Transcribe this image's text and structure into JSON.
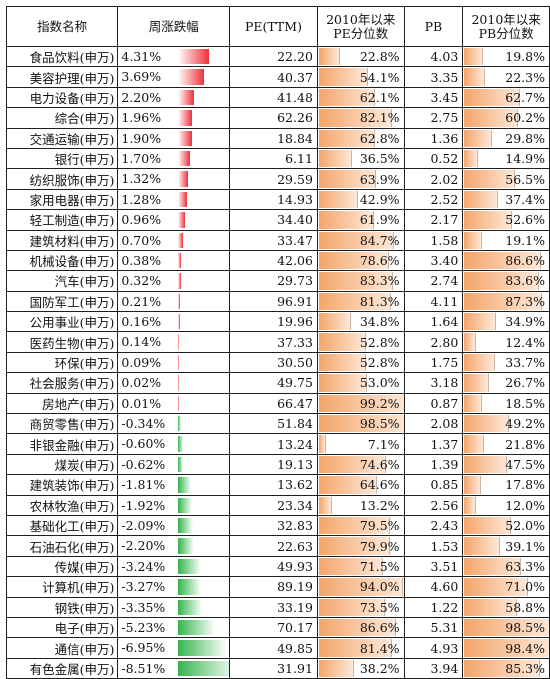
{
  "headers": {
    "name": "指数名称",
    "chg": "周涨跌幅",
    "pe": "PE(TTM)",
    "pe_pct_1": "2010年以来",
    "pe_pct_2": "PE分位数",
    "pb": "PB",
    "pb_pct_1": "2010年以来",
    "pb_pct_2": "PB分位数"
  },
  "colors": {
    "up_bar": "#f0303a",
    "down_bar": "#35b44c",
    "pct_bar": "#f4a56a"
  },
  "rows": [
    {
      "name": "食品饮料(申万)",
      "chg": "4.31%",
      "chg_v": 4.31,
      "pe": "22.20",
      "pe_pct": "22.8%",
      "pe_pct_v": 22.8,
      "pb": "4.03",
      "pb_pct": "19.8%",
      "pb_pct_v": 19.8
    },
    {
      "name": "美容护理(申万)",
      "chg": "3.69%",
      "chg_v": 3.69,
      "pe": "40.37",
      "pe_pct": "54.1%",
      "pe_pct_v": 54.1,
      "pb": "3.35",
      "pb_pct": "22.3%",
      "pb_pct_v": 22.3
    },
    {
      "name": "电力设备(申万)",
      "chg": "2.20%",
      "chg_v": 2.2,
      "pe": "41.48",
      "pe_pct": "62.1%",
      "pe_pct_v": 62.1,
      "pb": "3.45",
      "pb_pct": "62.7%",
      "pb_pct_v": 62.7
    },
    {
      "name": "综合(申万)",
      "chg": "1.96%",
      "chg_v": 1.96,
      "pe": "62.26",
      "pe_pct": "82.1%",
      "pe_pct_v": 82.1,
      "pb": "2.75",
      "pb_pct": "60.2%",
      "pb_pct_v": 60.2
    },
    {
      "name": "交通运输(申万)",
      "chg": "1.90%",
      "chg_v": 1.9,
      "pe": "18.84",
      "pe_pct": "62.8%",
      "pe_pct_v": 62.8,
      "pb": "1.36",
      "pb_pct": "29.8%",
      "pb_pct_v": 29.8
    },
    {
      "name": "银行(申万)",
      "chg": "1.70%",
      "chg_v": 1.7,
      "pe": "6.11",
      "pe_pct": "36.5%",
      "pe_pct_v": 36.5,
      "pb": "0.52",
      "pb_pct": "14.9%",
      "pb_pct_v": 14.9
    },
    {
      "name": "纺织服饰(申万)",
      "chg": "1.32%",
      "chg_v": 1.32,
      "pe": "29.59",
      "pe_pct": "63.9%",
      "pe_pct_v": 63.9,
      "pb": "2.02",
      "pb_pct": "56.5%",
      "pb_pct_v": 56.5
    },
    {
      "name": "家用电器(申万)",
      "chg": "1.28%",
      "chg_v": 1.28,
      "pe": "14.93",
      "pe_pct": "42.9%",
      "pe_pct_v": 42.9,
      "pb": "2.52",
      "pb_pct": "37.4%",
      "pb_pct_v": 37.4
    },
    {
      "name": "轻工制造(申万)",
      "chg": "0.96%",
      "chg_v": 0.96,
      "pe": "34.40",
      "pe_pct": "61.9%",
      "pe_pct_v": 61.9,
      "pb": "2.17",
      "pb_pct": "52.6%",
      "pb_pct_v": 52.6
    },
    {
      "name": "建筑材料(申万)",
      "chg": "0.70%",
      "chg_v": 0.7,
      "pe": "33.47",
      "pe_pct": "84.7%",
      "pe_pct_v": 84.7,
      "pb": "1.58",
      "pb_pct": "19.1%",
      "pb_pct_v": 19.1
    },
    {
      "name": "机械设备(申万)",
      "chg": "0.38%",
      "chg_v": 0.38,
      "pe": "42.06",
      "pe_pct": "78.6%",
      "pe_pct_v": 78.6,
      "pb": "3.40",
      "pb_pct": "86.6%",
      "pb_pct_v": 86.6
    },
    {
      "name": "汽车(申万)",
      "chg": "0.32%",
      "chg_v": 0.32,
      "pe": "29.73",
      "pe_pct": "83.3%",
      "pe_pct_v": 83.3,
      "pb": "2.74",
      "pb_pct": "83.6%",
      "pb_pct_v": 83.6
    },
    {
      "name": "国防军工(申万)",
      "chg": "0.21%",
      "chg_v": 0.21,
      "pe": "96.91",
      "pe_pct": "81.3%",
      "pe_pct_v": 81.3,
      "pb": "4.11",
      "pb_pct": "87.3%",
      "pb_pct_v": 87.3
    },
    {
      "name": "公用事业(申万)",
      "chg": "0.16%",
      "chg_v": 0.16,
      "pe": "19.96",
      "pe_pct": "34.8%",
      "pe_pct_v": 34.8,
      "pb": "1.64",
      "pb_pct": "34.9%",
      "pb_pct_v": 34.9
    },
    {
      "name": "医药生物(申万)",
      "chg": "0.14%",
      "chg_v": 0.14,
      "pe": "37.33",
      "pe_pct": "52.8%",
      "pe_pct_v": 52.8,
      "pb": "2.80",
      "pb_pct": "12.4%",
      "pb_pct_v": 12.4
    },
    {
      "name": "环保(申万)",
      "chg": "0.09%",
      "chg_v": 0.09,
      "pe": "30.50",
      "pe_pct": "52.8%",
      "pe_pct_v": 52.8,
      "pb": "1.75",
      "pb_pct": "33.7%",
      "pb_pct_v": 33.7
    },
    {
      "name": "社会服务(申万)",
      "chg": "0.02%",
      "chg_v": 0.02,
      "pe": "49.75",
      "pe_pct": "53.0%",
      "pe_pct_v": 53.0,
      "pb": "3.18",
      "pb_pct": "26.7%",
      "pb_pct_v": 26.7
    },
    {
      "name": "房地产(申万)",
      "chg": "0.01%",
      "chg_v": 0.01,
      "pe": "66.47",
      "pe_pct": "99.2%",
      "pe_pct_v": 99.2,
      "pb": "0.87",
      "pb_pct": "18.5%",
      "pb_pct_v": 18.5
    },
    {
      "name": "商贸零售(申万)",
      "chg": "-0.34%",
      "chg_v": -0.34,
      "pe": "51.84",
      "pe_pct": "98.5%",
      "pe_pct_v": 98.5,
      "pb": "2.08",
      "pb_pct": "49.2%",
      "pb_pct_v": 49.2
    },
    {
      "name": "非银金融(申万)",
      "chg": "-0.60%",
      "chg_v": -0.6,
      "pe": "13.24",
      "pe_pct": "7.1%",
      "pe_pct_v": 7.1,
      "pb": "1.37",
      "pb_pct": "21.8%",
      "pb_pct_v": 21.8
    },
    {
      "name": "煤炭(申万)",
      "chg": "-0.62%",
      "chg_v": -0.62,
      "pe": "19.13",
      "pe_pct": "74.6%",
      "pe_pct_v": 74.6,
      "pb": "1.39",
      "pb_pct": "47.5%",
      "pb_pct_v": 47.5
    },
    {
      "name": "建筑装饰(申万)",
      "chg": "-1.81%",
      "chg_v": -1.81,
      "pe": "13.62",
      "pe_pct": "64.6%",
      "pe_pct_v": 64.6,
      "pb": "0.85",
      "pb_pct": "17.8%",
      "pb_pct_v": 17.8
    },
    {
      "name": "农林牧渔(申万)",
      "chg": "-1.92%",
      "chg_v": -1.92,
      "pe": "23.34",
      "pe_pct": "13.2%",
      "pe_pct_v": 13.2,
      "pb": "2.56",
      "pb_pct": "12.0%",
      "pb_pct_v": 12.0
    },
    {
      "name": "基础化工(申万)",
      "chg": "-2.09%",
      "chg_v": -2.09,
      "pe": "32.83",
      "pe_pct": "79.5%",
      "pe_pct_v": 79.5,
      "pb": "2.43",
      "pb_pct": "52.0%",
      "pb_pct_v": 52.0
    },
    {
      "name": "石油石化(申万)",
      "chg": "-2.20%",
      "chg_v": -2.2,
      "pe": "22.63",
      "pe_pct": "79.9%",
      "pe_pct_v": 79.9,
      "pb": "1.53",
      "pb_pct": "39.1%",
      "pb_pct_v": 39.1
    },
    {
      "name": "传媒(申万)",
      "chg": "-3.24%",
      "chg_v": -3.24,
      "pe": "49.93",
      "pe_pct": "71.5%",
      "pe_pct_v": 71.5,
      "pb": "3.51",
      "pb_pct": "63.3%",
      "pb_pct_v": 63.3
    },
    {
      "name": "计算机(申万)",
      "chg": "-3.27%",
      "chg_v": -3.27,
      "pe": "89.19",
      "pe_pct": "94.0%",
      "pe_pct_v": 94.0,
      "pb": "4.60",
      "pb_pct": "71.0%",
      "pb_pct_v": 71.0
    },
    {
      "name": "钢铁(申万)",
      "chg": "-3.35%",
      "chg_v": -3.35,
      "pe": "33.19",
      "pe_pct": "73.5%",
      "pe_pct_v": 73.5,
      "pb": "1.22",
      "pb_pct": "58.8%",
      "pb_pct_v": 58.8
    },
    {
      "name": "电子(申万)",
      "chg": "-5.23%",
      "chg_v": -5.23,
      "pe": "70.17",
      "pe_pct": "86.6%",
      "pe_pct_v": 86.6,
      "pb": "5.31",
      "pb_pct": "98.5%",
      "pb_pct_v": 98.5
    },
    {
      "name": "通信(申万)",
      "chg": "-6.95%",
      "chg_v": -6.95,
      "pe": "49.85",
      "pe_pct": "81.4%",
      "pe_pct_v": 81.4,
      "pb": "4.93",
      "pb_pct": "98.4%",
      "pb_pct_v": 98.4
    },
    {
      "name": "有色金属(申万)",
      "chg": "-8.51%",
      "chg_v": -8.51,
      "pe": "31.91",
      "pe_pct": "38.2%",
      "pe_pct_v": 38.2,
      "pb": "3.94",
      "pb_pct": "85.3%",
      "pb_pct_v": 85.3
    }
  ]
}
